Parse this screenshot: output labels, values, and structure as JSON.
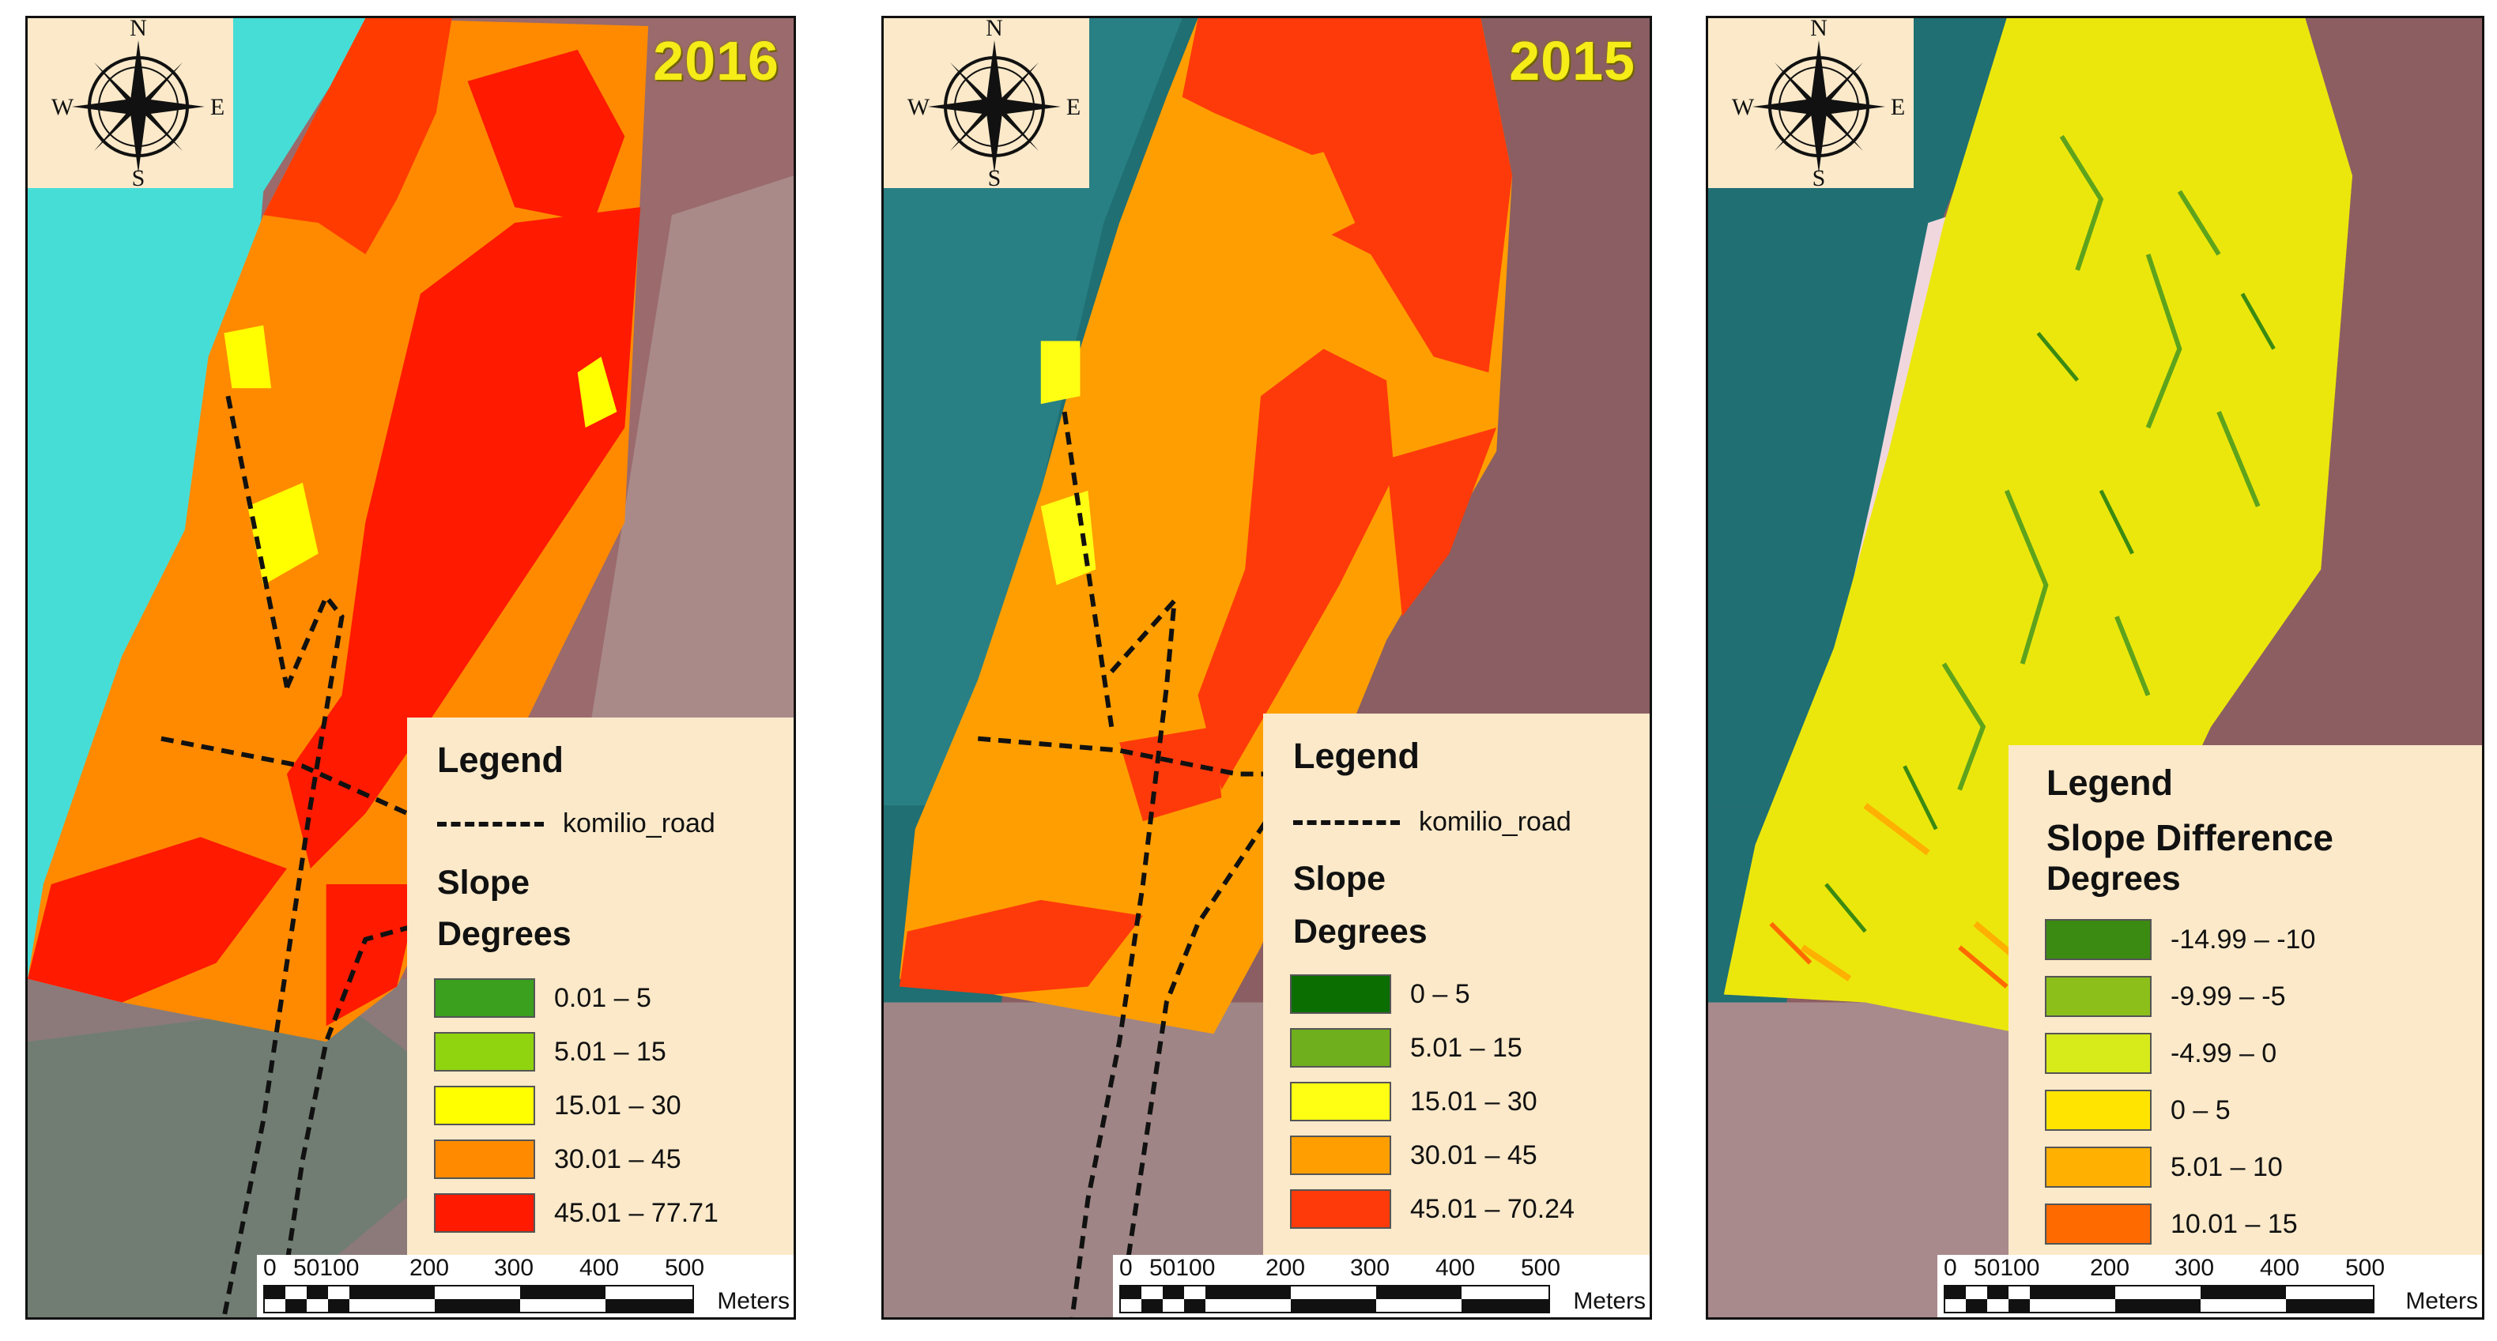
{
  "figure": {
    "panels": [
      {
        "year": "2016",
        "compass": {
          "n": "N",
          "s": "S",
          "e": "E",
          "w": "W",
          "icon": "compass-rose-icon"
        },
        "legend": {
          "title": "Legend",
          "road_label": "komilio_road",
          "layer_title": "Slope",
          "units": "Degrees",
          "classes": [
            {
              "label": "0.01 – 5",
              "color": "#3aa01d"
            },
            {
              "label": "5.01 – 15",
              "color": "#8fd40f"
            },
            {
              "label": "15.01 – 30",
              "color": "#ffff00"
            },
            {
              "label": "30.01 – 45",
              "color": "#ff8a00"
            },
            {
              "label": "45.01 – 77.71",
              "color": "#ff1a00"
            }
          ]
        },
        "scale": {
          "ticks": [
            "0",
            "50100",
            "200",
            "300",
            "400",
            "500"
          ],
          "units": "Meters"
        }
      },
      {
        "year": "2015",
        "compass": {
          "n": "N",
          "s": "S",
          "e": "E",
          "w": "W",
          "icon": "compass-rose-icon"
        },
        "legend": {
          "title": "Legend",
          "road_label": "komilio_road",
          "layer_title": "Slope",
          "units": "Degrees",
          "classes": [
            {
              "label": "0 – 5",
              "color": "#0b6e00"
            },
            {
              "label": "5.01 – 15",
              "color": "#6fae1c"
            },
            {
              "label": "15.01 – 30",
              "color": "#ffff14"
            },
            {
              "label": "30.01 – 45",
              "color": "#ff9e00"
            },
            {
              "label": "45.01 – 70.24",
              "color": "#ff3a0a"
            }
          ]
        },
        "scale": {
          "ticks": [
            "0",
            "50100",
            "200",
            "300",
            "400",
            "500"
          ],
          "units": "Meters"
        }
      },
      {
        "year": "",
        "compass": {
          "n": "N",
          "s": "S",
          "e": "E",
          "w": "W",
          "icon": "compass-rose-icon"
        },
        "legend": {
          "title": "Legend",
          "road_label": "",
          "layer_title": "Slope Difference",
          "units": "Degrees",
          "classes": [
            {
              "label": "-14.99 – -10",
              "color": "#3b8a12"
            },
            {
              "label": "-9.99 – -5",
              "color": "#8cbf1a"
            },
            {
              "label": "-4.99 – 0",
              "color": "#d7ea1a"
            },
            {
              "label": "0 – 5",
              "color": "#ffe400"
            },
            {
              "label": "5.01 – 10",
              "color": "#ffb000"
            },
            {
              "label": "10.01 – 15",
              "color": "#ff6a00"
            }
          ]
        },
        "scale": {
          "ticks": [
            "0",
            "50100",
            "200",
            "300",
            "400",
            "500"
          ],
          "units": "Meters"
        }
      }
    ]
  }
}
